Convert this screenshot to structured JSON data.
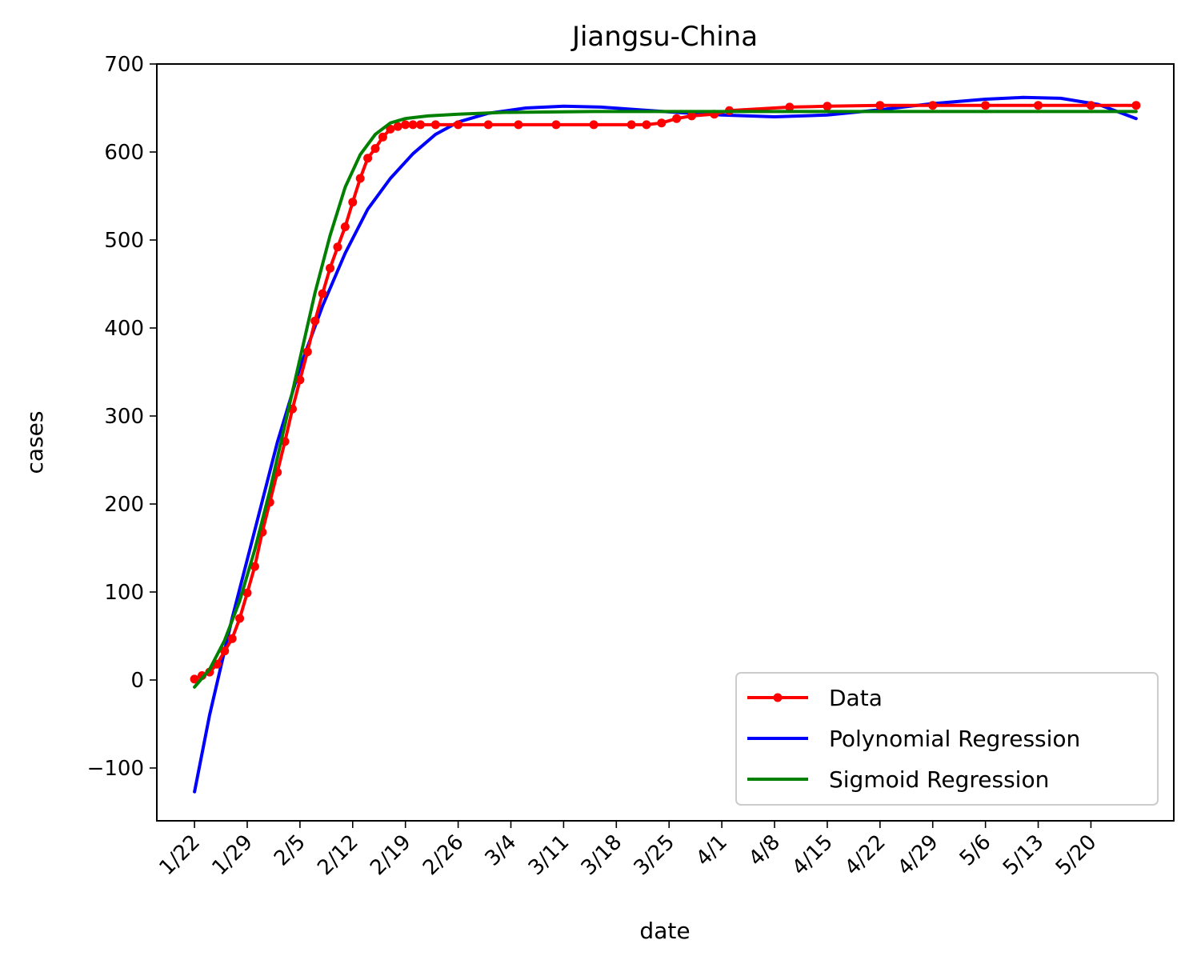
{
  "chart_data": {
    "type": "line",
    "title": "Jiangsu-China",
    "xlabel": "date",
    "ylabel": "cases",
    "ylim": [
      -160,
      700
    ],
    "xlim": [
      "2020-01-17",
      "2020-05-31"
    ],
    "y_ticks": [
      -100,
      0,
      100,
      200,
      300,
      400,
      500,
      600,
      700
    ],
    "x_ticks": [
      "1/22",
      "1/29",
      "2/5",
      "2/12",
      "2/19",
      "2/26",
      "3/4",
      "3/11",
      "3/18",
      "3/25",
      "4/1",
      "4/8",
      "4/15",
      "4/22",
      "4/29",
      "5/6",
      "5/13",
      "5/20"
    ],
    "x_tick_dates": [
      "2020-01-22",
      "2020-01-29",
      "2020-02-05",
      "2020-02-12",
      "2020-02-19",
      "2020-02-26",
      "2020-03-04",
      "2020-03-11",
      "2020-03-18",
      "2020-03-25",
      "2020-04-01",
      "2020-04-08",
      "2020-04-15",
      "2020-04-22",
      "2020-04-29",
      "2020-05-06",
      "2020-05-13",
      "2020-05-20"
    ],
    "legend_position": "bottom-right",
    "grid": false,
    "series": [
      {
        "name": "Data",
        "color": "#ff0000",
        "marker": "circle",
        "x": [
          "2020-01-22",
          "2020-01-23",
          "2020-01-24",
          "2020-01-25",
          "2020-01-26",
          "2020-01-27",
          "2020-01-28",
          "2020-01-29",
          "2020-01-30",
          "2020-01-31",
          "2020-02-01",
          "2020-02-02",
          "2020-02-03",
          "2020-02-04",
          "2020-02-05",
          "2020-02-06",
          "2020-02-07",
          "2020-02-08",
          "2020-02-09",
          "2020-02-10",
          "2020-02-11",
          "2020-02-12",
          "2020-02-13",
          "2020-02-14",
          "2020-02-15",
          "2020-02-16",
          "2020-02-17",
          "2020-02-18",
          "2020-02-19",
          "2020-02-20",
          "2020-02-21",
          "2020-02-23",
          "2020-02-26",
          "2020-03-01",
          "2020-03-05",
          "2020-03-10",
          "2020-03-15",
          "2020-03-20",
          "2020-03-22",
          "2020-03-24",
          "2020-03-26",
          "2020-03-28",
          "2020-03-31",
          "2020-04-02",
          "2020-04-10",
          "2020-04-15",
          "2020-04-22",
          "2020-04-29",
          "2020-05-06",
          "2020-05-13",
          "2020-05-20",
          "2020-05-26"
        ],
        "y": [
          1,
          5,
          9,
          18,
          33,
          47,
          70,
          99,
          129,
          168,
          202,
          236,
          271,
          308,
          341,
          373,
          408,
          439,
          468,
          492,
          515,
          543,
          570,
          593,
          604,
          617,
          626,
          629,
          631,
          631,
          631,
          631,
          631,
          631,
          631,
          631,
          631,
          631,
          631,
          633,
          638,
          641,
          643,
          647,
          651,
          652,
          653,
          653,
          653,
          653,
          653,
          653
        ]
      },
      {
        "name": "Polynomial Regression",
        "color": "#0000ff",
        "x": [
          "2020-01-22",
          "2020-01-24",
          "2020-01-27",
          "2020-01-30",
          "2020-02-02",
          "2020-02-05",
          "2020-02-08",
          "2020-02-11",
          "2020-02-14",
          "2020-02-17",
          "2020-02-20",
          "2020-02-23",
          "2020-02-26",
          "2020-03-01",
          "2020-03-06",
          "2020-03-11",
          "2020-03-16",
          "2020-03-21",
          "2020-03-26",
          "2020-04-01",
          "2020-04-08",
          "2020-04-15",
          "2020-04-22",
          "2020-04-29",
          "2020-05-06",
          "2020-05-11",
          "2020-05-16",
          "2020-05-21",
          "2020-05-26"
        ],
        "y": [
          -127,
          -40,
          70,
          170,
          270,
          355,
          425,
          485,
          535,
          570,
          598,
          620,
          634,
          644,
          650,
          652,
          651,
          648,
          645,
          642,
          640,
          642,
          648,
          655,
          660,
          662,
          661,
          654,
          638
        ]
      },
      {
        "name": "Sigmoid Regression",
        "color": "#008000",
        "x": [
          "2020-01-22",
          "2020-01-24",
          "2020-01-26",
          "2020-01-28",
          "2020-01-30",
          "2020-02-01",
          "2020-02-03",
          "2020-02-05",
          "2020-02-07",
          "2020-02-09",
          "2020-02-11",
          "2020-02-13",
          "2020-02-15",
          "2020-02-17",
          "2020-02-19",
          "2020-02-22",
          "2020-02-26",
          "2020-03-03",
          "2020-03-15",
          "2020-04-01",
          "2020-05-01",
          "2020-05-26"
        ],
        "y": [
          -8,
          12,
          45,
          90,
          148,
          215,
          290,
          365,
          440,
          505,
          560,
          597,
          620,
          633,
          638,
          641,
          643,
          645,
          646,
          646,
          646,
          646
        ]
      }
    ]
  }
}
